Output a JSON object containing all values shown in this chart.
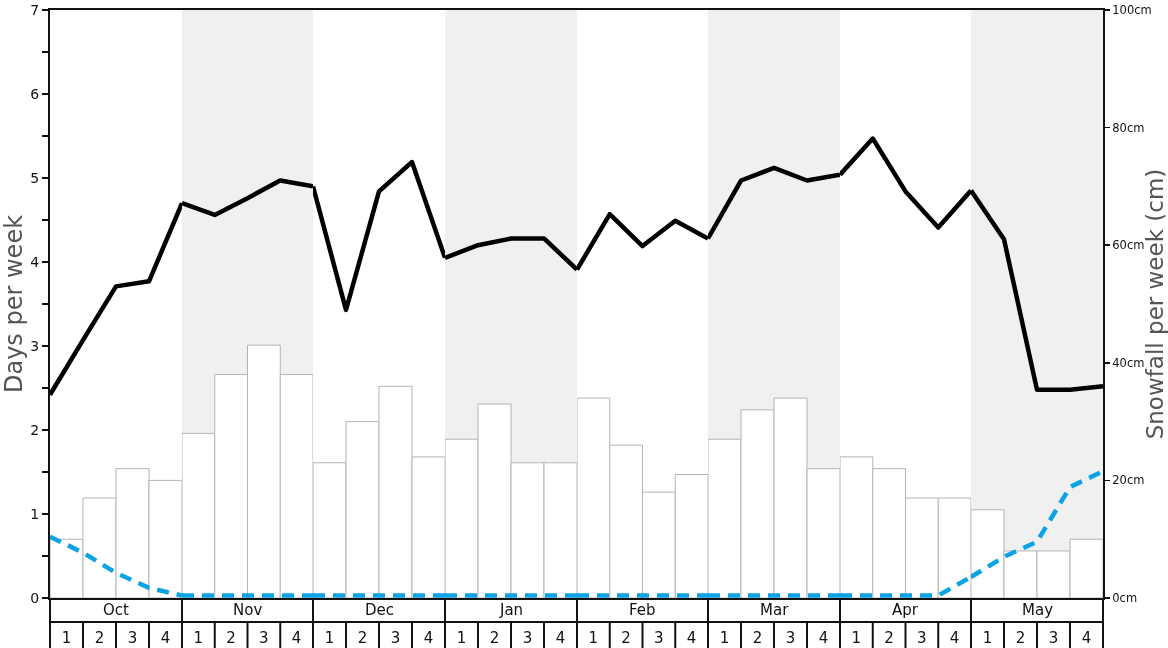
{
  "chart_data": [
    {
      "type": "bar",
      "xlabel": "Oct",
      "ylabel": "Days per week",
      "tick_labels": "xy",
      "xlim": [
        0.5,
        4.5
      ],
      "xticks": [
        1,
        2,
        3,
        4
      ],
      "ylim": [
        0,
        7
      ],
      "yticks": [
        0,
        {
          "value": 0.5,
          "label": null
        },
        1,
        {
          "value": 1.5,
          "label": null
        },
        2,
        {
          "value": 2.5,
          "label": null
        },
        3,
        {
          "value": 3.5,
          "label": null
        },
        4,
        {
          "value": 4.5,
          "label": null
        },
        5,
        {
          "value": 5.5,
          "label": null
        },
        6,
        {
          "value": 6.5,
          "label": null
        },
        7
      ],
      "y2lim": [
        0,
        100
      ],
      "series": [
        {
          "axis": "y2",
          "color": "#ffffff",
          "x": [
            1,
            2,
            3,
            4
          ],
          "values": [
            10,
            17,
            22,
            20
          ]
        },
        {
          "type": "line",
          "color": "#000000",
          "x": [
            0.5,
            1.5,
            2.5,
            3.5,
            4.5
          ],
          "values": [
            2.42,
            3.07,
            3.71,
            3.77,
            4.7
          ]
        },
        {
          "type": "line",
          "color": "#0ba2e6",
          "line_style": "dashed",
          "x": [
            0.5,
            1.5,
            2.5,
            3.5,
            4.5
          ],
          "values": [
            0.73,
            0.54,
            0.3,
            0.12,
            0.03
          ]
        }
      ]
    },
    {
      "type": "bar",
      "xlabel": "Nov",
      "tick_labels": "x",
      "xlim": [
        0.5,
        4.5
      ],
      "xticks": [
        1,
        2,
        3,
        4
      ],
      "ylim": [
        0,
        7
      ],
      "y2lim": [
        0,
        100
      ],
      "series": [
        {
          "axis": "y2",
          "color": "#ffffff",
          "x": [
            1,
            2,
            3,
            4
          ],
          "values": [
            28,
            38,
            43,
            38
          ]
        },
        {
          "type": "line",
          "color": "#000000",
          "x": [
            0.5,
            1.5,
            2.5,
            3.5,
            4.5
          ],
          "values": [
            4.7,
            4.56,
            4.76,
            4.97,
            4.9
          ]
        },
        {
          "type": "line",
          "color": "#0ba2e6",
          "line_style": "dashed",
          "x": [
            0.5,
            1.5,
            2.5,
            3.5,
            4.5
          ],
          "values": [
            0.03,
            0.03,
            0.03,
            0.03,
            0.03
          ]
        }
      ]
    },
    {
      "type": "bar",
      "xlabel": "Dec",
      "tick_labels": "x",
      "xlim": [
        0.5,
        4.5
      ],
      "xticks": [
        1,
        2,
        3,
        4
      ],
      "ylim": [
        0,
        7
      ],
      "y2lim": [
        0,
        100
      ],
      "series": [
        {
          "axis": "y2",
          "color": "#ffffff",
          "x": [
            1,
            2,
            3,
            4
          ],
          "values": [
            23,
            30,
            36,
            24
          ]
        },
        {
          "type": "line",
          "color": "#000000",
          "x": [
            0.5,
            1.5,
            2.5,
            3.5,
            4.5
          ],
          "values": [
            4.9,
            3.43,
            4.84,
            5.19,
            4.05
          ]
        },
        {
          "type": "line",
          "color": "#0ba2e6",
          "line_style": "dashed",
          "x": [
            0.5,
            1.5,
            2.5,
            3.5,
            4.5
          ],
          "values": [
            0.03,
            0.03,
            0.03,
            0.03,
            0.03
          ]
        }
      ]
    },
    {
      "type": "bar",
      "xlabel": "Jan",
      "tick_labels": "x",
      "xlim": [
        0.5,
        4.5
      ],
      "xticks": [
        1,
        2,
        3,
        4
      ],
      "ylim": [
        0,
        7
      ],
      "y2lim": [
        0,
        100
      ],
      "series": [
        {
          "axis": "y2",
          "color": "#ffffff",
          "x": [
            1,
            2,
            3,
            4
          ],
          "values": [
            27,
            33,
            23,
            23
          ]
        },
        {
          "type": "line",
          "color": "#000000",
          "x": [
            0.5,
            1.5,
            2.5,
            3.5,
            4.5
          ],
          "values": [
            4.05,
            4.2,
            4.28,
            4.28,
            3.91
          ]
        },
        {
          "type": "line",
          "color": "#0ba2e6",
          "line_style": "dashed",
          "x": [
            0.5,
            1.5,
            2.5,
            3.5,
            4.5
          ],
          "values": [
            0.03,
            0.03,
            0.03,
            0.03,
            0.03
          ]
        }
      ]
    },
    {
      "type": "bar",
      "xlabel": "Feb",
      "tick_labels": "x",
      "xlim": [
        0.5,
        4.5
      ],
      "xticks": [
        1,
        2,
        3,
        4
      ],
      "ylim": [
        0,
        7
      ],
      "y2lim": [
        0,
        100
      ],
      "series": [
        {
          "axis": "y2",
          "color": "#ffffff",
          "x": [
            1,
            2,
            3,
            4
          ],
          "values": [
            34,
            26,
            18,
            21
          ]
        },
        {
          "type": "line",
          "color": "#000000",
          "x": [
            0.5,
            1.5,
            2.5,
            3.5,
            4.5
          ],
          "values": [
            3.91,
            4.57,
            4.19,
            4.49,
            4.28
          ]
        },
        {
          "type": "line",
          "color": "#0ba2e6",
          "line_style": "dashed",
          "x": [
            0.5,
            1.5,
            2.5,
            3.5,
            4.5
          ],
          "values": [
            0.03,
            0.03,
            0.03,
            0.03,
            0.03
          ]
        }
      ]
    },
    {
      "type": "bar",
      "xlabel": "Mar",
      "tick_labels": "x",
      "xlim": [
        0.5,
        4.5
      ],
      "xticks": [
        1,
        2,
        3,
        4
      ],
      "ylim": [
        0,
        7
      ],
      "y2lim": [
        0,
        100
      ],
      "series": [
        {
          "axis": "y2",
          "color": "#ffffff",
          "x": [
            1,
            2,
            3,
            4
          ],
          "values": [
            27,
            32,
            34,
            22
          ]
        },
        {
          "type": "line",
          "color": "#000000",
          "x": [
            0.5,
            1.5,
            2.5,
            3.5,
            4.5
          ],
          "values": [
            4.28,
            4.97,
            5.12,
            4.97,
            5.04
          ]
        },
        {
          "type": "line",
          "color": "#0ba2e6",
          "line_style": "dashed",
          "x": [
            0.5,
            1.5,
            2.5,
            3.5,
            4.5
          ],
          "values": [
            0.03,
            0.03,
            0.03,
            0.03,
            0.03
          ]
        }
      ]
    },
    {
      "type": "bar",
      "xlabel": "Apr",
      "tick_labels": "x",
      "xlim": [
        0.5,
        4.5
      ],
      "xticks": [
        1,
        2,
        3,
        4
      ],
      "ylim": [
        0,
        7
      ],
      "y2lim": [
        0,
        100
      ],
      "series": [
        {
          "axis": "y2",
          "color": "#ffffff",
          "x": [
            1,
            2,
            3,
            4
          ],
          "values": [
            24,
            22,
            17,
            17
          ]
        },
        {
          "type": "line",
          "color": "#000000",
          "x": [
            0.5,
            1.5,
            2.5,
            3.5,
            4.5
          ],
          "values": [
            5.04,
            5.47,
            4.84,
            4.41,
            4.85
          ]
        },
        {
          "type": "line",
          "color": "#0ba2e6",
          "line_style": "dashed",
          "x": [
            0.5,
            1.5,
            2.5,
            3.5,
            4.5
          ],
          "values": [
            0.03,
            0.03,
            0.03,
            0.03,
            0.25
          ]
        }
      ]
    },
    {
      "type": "bar",
      "xlabel": "May",
      "y2label": "Snowfall per week (cm)",
      "tick_labels": "xy2",
      "xlim": [
        0.5,
        4.5
      ],
      "xticks": [
        1,
        2,
        3,
        4
      ],
      "ylim": [
        0,
        7
      ],
      "y2lim": [
        0,
        100
      ],
      "y2ticks": [
        {
          "value": 0,
          "label": "0cm"
        },
        {
          "value": 20,
          "label": "20cm"
        },
        {
          "value": 40,
          "label": "40cm"
        },
        {
          "value": 60,
          "label": "60cm"
        },
        {
          "value": 80,
          "label": "80cm"
        },
        {
          "value": 100,
          "label": "100cm"
        }
      ],
      "series": [
        {
          "axis": "y2",
          "color": "#ffffff",
          "x": [
            1,
            2,
            3,
            4
          ],
          "values": [
            15,
            8,
            8,
            10
          ]
        },
        {
          "type": "line",
          "color": "#000000",
          "x": [
            0.5,
            1.5,
            2.5,
            3.5,
            4.5
          ],
          "values": [
            4.85,
            4.27,
            2.48,
            2.48,
            2.52
          ]
        },
        {
          "type": "line",
          "color": "#0ba2e6",
          "line_style": "dashed",
          "x": [
            0.5,
            1.5,
            2.5,
            3.5,
            4.5
          ],
          "values": [
            0.25,
            0.49,
            0.67,
            1.32,
            1.51
          ]
        }
      ]
    }
  ]
}
